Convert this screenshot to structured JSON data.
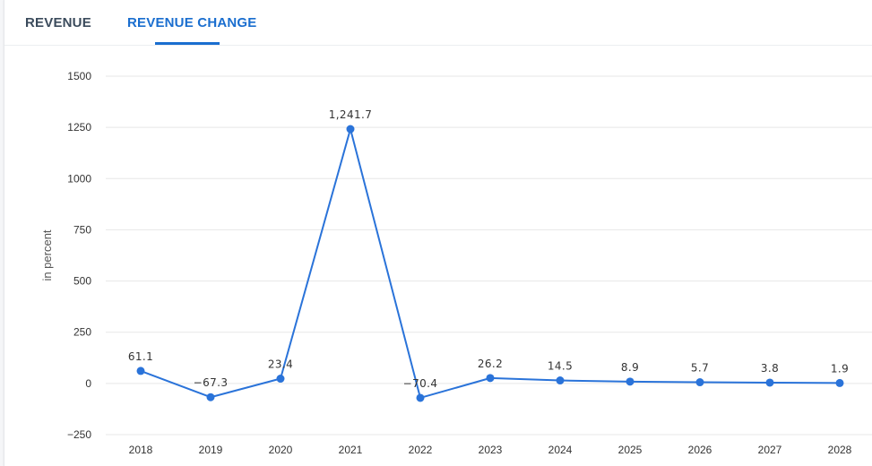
{
  "tabs": [
    {
      "label": "REVENUE",
      "active": false
    },
    {
      "label": "REVENUE CHANGE",
      "active": true
    }
  ],
  "colors": {
    "accent": "#1a6ecf",
    "line": "#2a73d9",
    "grid": "#e7e7e7",
    "text": "#333333"
  },
  "chart_data": {
    "type": "line",
    "title": "",
    "xlabel": "",
    "ylabel": "in percent",
    "categories": [
      "2018",
      "2019",
      "2020",
      "2021",
      "2022",
      "2023",
      "2024",
      "2025",
      "2026",
      "2027",
      "2028"
    ],
    "series": [
      {
        "values": [
          61.1,
          -67.3,
          23.4,
          1241.7,
          -70.4,
          26.2,
          14.5,
          8.9,
          5.7,
          3.8,
          1.9
        ],
        "labels": [
          "61.1",
          "−67.3",
          "23.4",
          "1,241.7",
          "−70.4",
          "26.2",
          "14.5",
          "8.9",
          "5.7",
          "3.8",
          "1.9"
        ]
      }
    ],
    "ylim": [
      -250,
      1500
    ],
    "yticks": [
      1500,
      1250,
      1000,
      750,
      500,
      250,
      0,
      -250
    ],
    "ytick_labels": [
      "1500",
      "1250",
      "1000",
      "750",
      "500",
      "250",
      "0",
      "−250"
    ],
    "grid": true,
    "legend": "none"
  }
}
